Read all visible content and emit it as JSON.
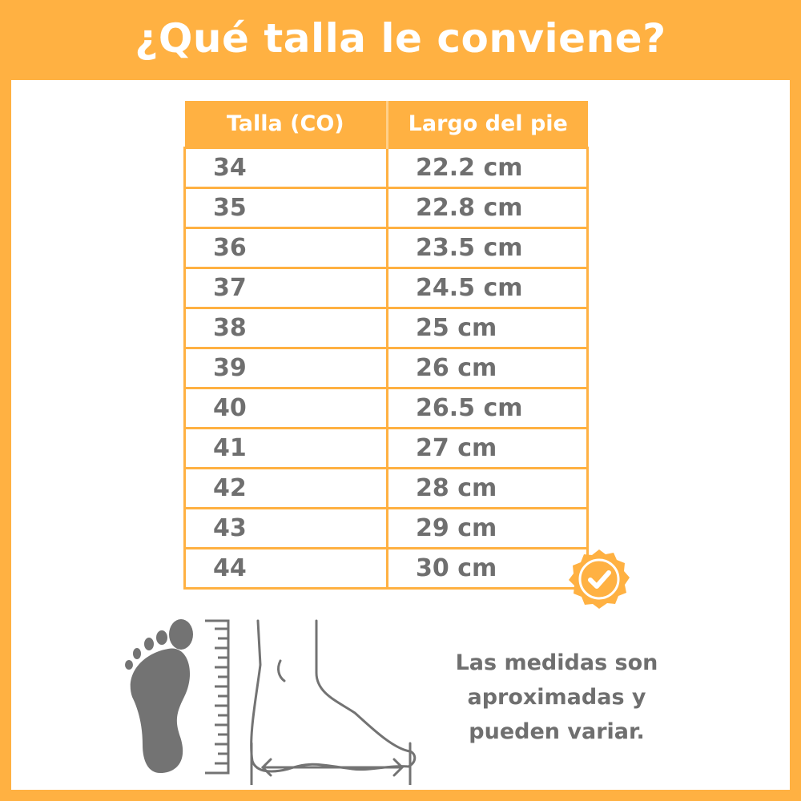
{
  "title": "¿Qué talla le conviene?",
  "table": {
    "headers": [
      "Talla (CO)",
      "Largo del pie"
    ],
    "rows": [
      [
        "34",
        "22.2 cm"
      ],
      [
        "35",
        "22.8 cm"
      ],
      [
        "36",
        "23.5 cm"
      ],
      [
        "37",
        "24.5 cm"
      ],
      [
        "38",
        "25 cm"
      ],
      [
        "39",
        "26 cm"
      ],
      [
        "40",
        "26.5 cm"
      ],
      [
        "41",
        "27 cm"
      ],
      [
        "42",
        "28 cm"
      ],
      [
        "43",
        "29 cm"
      ],
      [
        "44",
        "30 cm"
      ]
    ]
  },
  "note": "Las medidas son aproximadas y pueden variar.",
  "icons": [
    "check-badge-icon",
    "footprint-icon",
    "ruler-icon",
    "foot-side-icon",
    "length-arrow-icon"
  ],
  "colors": {
    "accent": "#FFB142",
    "text": "#6f6f6f"
  }
}
